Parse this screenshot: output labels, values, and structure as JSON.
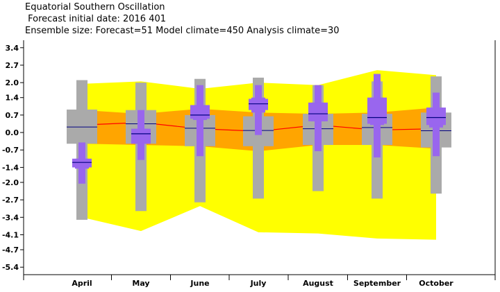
{
  "title_lines": [
    "Equatorial Southern Oscillation",
    " Forecast initial date: 2016 401",
    "Ensemble size: Forecast=51 Model climate=450 Analysis climate=30"
  ],
  "chart_data": {
    "type": "box",
    "title": "Equatorial Southern Oscillation",
    "categories": [
      "April",
      "May",
      "June",
      "July",
      "August",
      "September",
      "October"
    ],
    "y_ticks": [
      3.4,
      2.7,
      2.0,
      1.4,
      0.7,
      0.0,
      -0.7,
      -1.4,
      -2.0,
      -2.7,
      -3.4,
      -4.1,
      -4.7,
      -5.4
    ],
    "y_tick_labels": [
      "3.4",
      "2.7",
      "2.0",
      "1.4",
      "0.7",
      "0.0",
      "-0.7",
      "-1.4",
      "-2.0",
      "-2.7",
      "-3.4",
      "-4.1",
      "-4.7",
      "-5.4"
    ],
    "ylim": [
      -5.7,
      3.7
    ],
    "grid": false,
    "analysis_climate_band": {
      "upper": [
        1.95,
        2.05,
        1.75,
        2.0,
        1.9,
        2.5,
        2.3
      ],
      "lower": [
        -3.4,
        -3.95,
        -2.95,
        -4.0,
        -4.05,
        -4.25,
        -4.3
      ]
    },
    "analysis_climate_inner": {
      "upper": [
        0.9,
        0.75,
        0.95,
        0.8,
        0.75,
        0.8,
        1.0
      ],
      "lower": [
        -0.45,
        -0.5,
        -0.55,
        -0.75,
        -0.5,
        -0.5,
        -0.65
      ]
    },
    "analysis_median": [
      0.3,
      0.4,
      0.15,
      0.05,
      0.3,
      0.1,
      0.15
    ],
    "model_climate": [
      {
        "whisker_low": -3.5,
        "q1": -0.45,
        "median": 0.22,
        "q3": 0.92,
        "whisker_high": 2.1
      },
      {
        "whisker_low": -3.15,
        "q1": -0.45,
        "median": 0.35,
        "q3": 0.9,
        "whisker_high": 2.0
      },
      {
        "whisker_low": -2.8,
        "q1": -0.55,
        "median": 0.17,
        "q3": 0.7,
        "whisker_high": 2.15
      },
      {
        "whisker_low": -2.65,
        "q1": -0.55,
        "median": 0.08,
        "q3": 0.65,
        "whisker_high": 2.2
      },
      {
        "whisker_low": -2.35,
        "q1": -0.5,
        "median": 0.15,
        "q3": 0.75,
        "whisker_high": 1.9
      },
      {
        "whisker_low": -2.65,
        "q1": -0.5,
        "median": 0.2,
        "q3": 0.75,
        "whisker_high": 2.05
      },
      {
        "whisker_low": -2.45,
        "q1": -0.6,
        "median": 0.07,
        "q3": 0.8,
        "whisker_high": 2.25
      }
    ],
    "forecast": [
      {
        "min": -2.05,
        "p10": -1.45,
        "q1": -1.4,
        "median": -1.2,
        "q3": -1.05,
        "p90": -1.05,
        "max": -0.4
      },
      {
        "min": -1.1,
        "p10": -0.45,
        "q1": -0.45,
        "median": -0.05,
        "q3": 0.15,
        "p90": 0.15,
        "max": 0.9
      },
      {
        "min": -0.95,
        "p10": 0.5,
        "q1": 0.55,
        "median": 0.7,
        "q3": 1.1,
        "p90": 1.1,
        "max": 1.9
      },
      {
        "min": -0.1,
        "p10": 0.8,
        "q1": 0.9,
        "median": 1.15,
        "q3": 1.35,
        "p90": 1.4,
        "max": 1.9
      },
      {
        "min": -0.75,
        "p10": 0.45,
        "q1": 0.45,
        "median": 0.75,
        "q3": 1.2,
        "p90": 1.2,
        "max": 1.9
      },
      {
        "min": -1.0,
        "p10": 0.3,
        "q1": 0.35,
        "median": 0.6,
        "q3": 1.4,
        "p90": 1.4,
        "max": 2.35
      },
      {
        "min": -0.95,
        "p10": 0.2,
        "q1": 0.3,
        "median": 0.6,
        "q3": 1.0,
        "p90": 1.0,
        "max": 1.6
      }
    ],
    "colors": {
      "outer_band": "#ffff00",
      "inner_band": "#ffa500",
      "median_line": "#ff0000",
      "model_box": "#aaaaaa",
      "forecast_box": "#9966ee",
      "median_mark": "#000080"
    }
  }
}
